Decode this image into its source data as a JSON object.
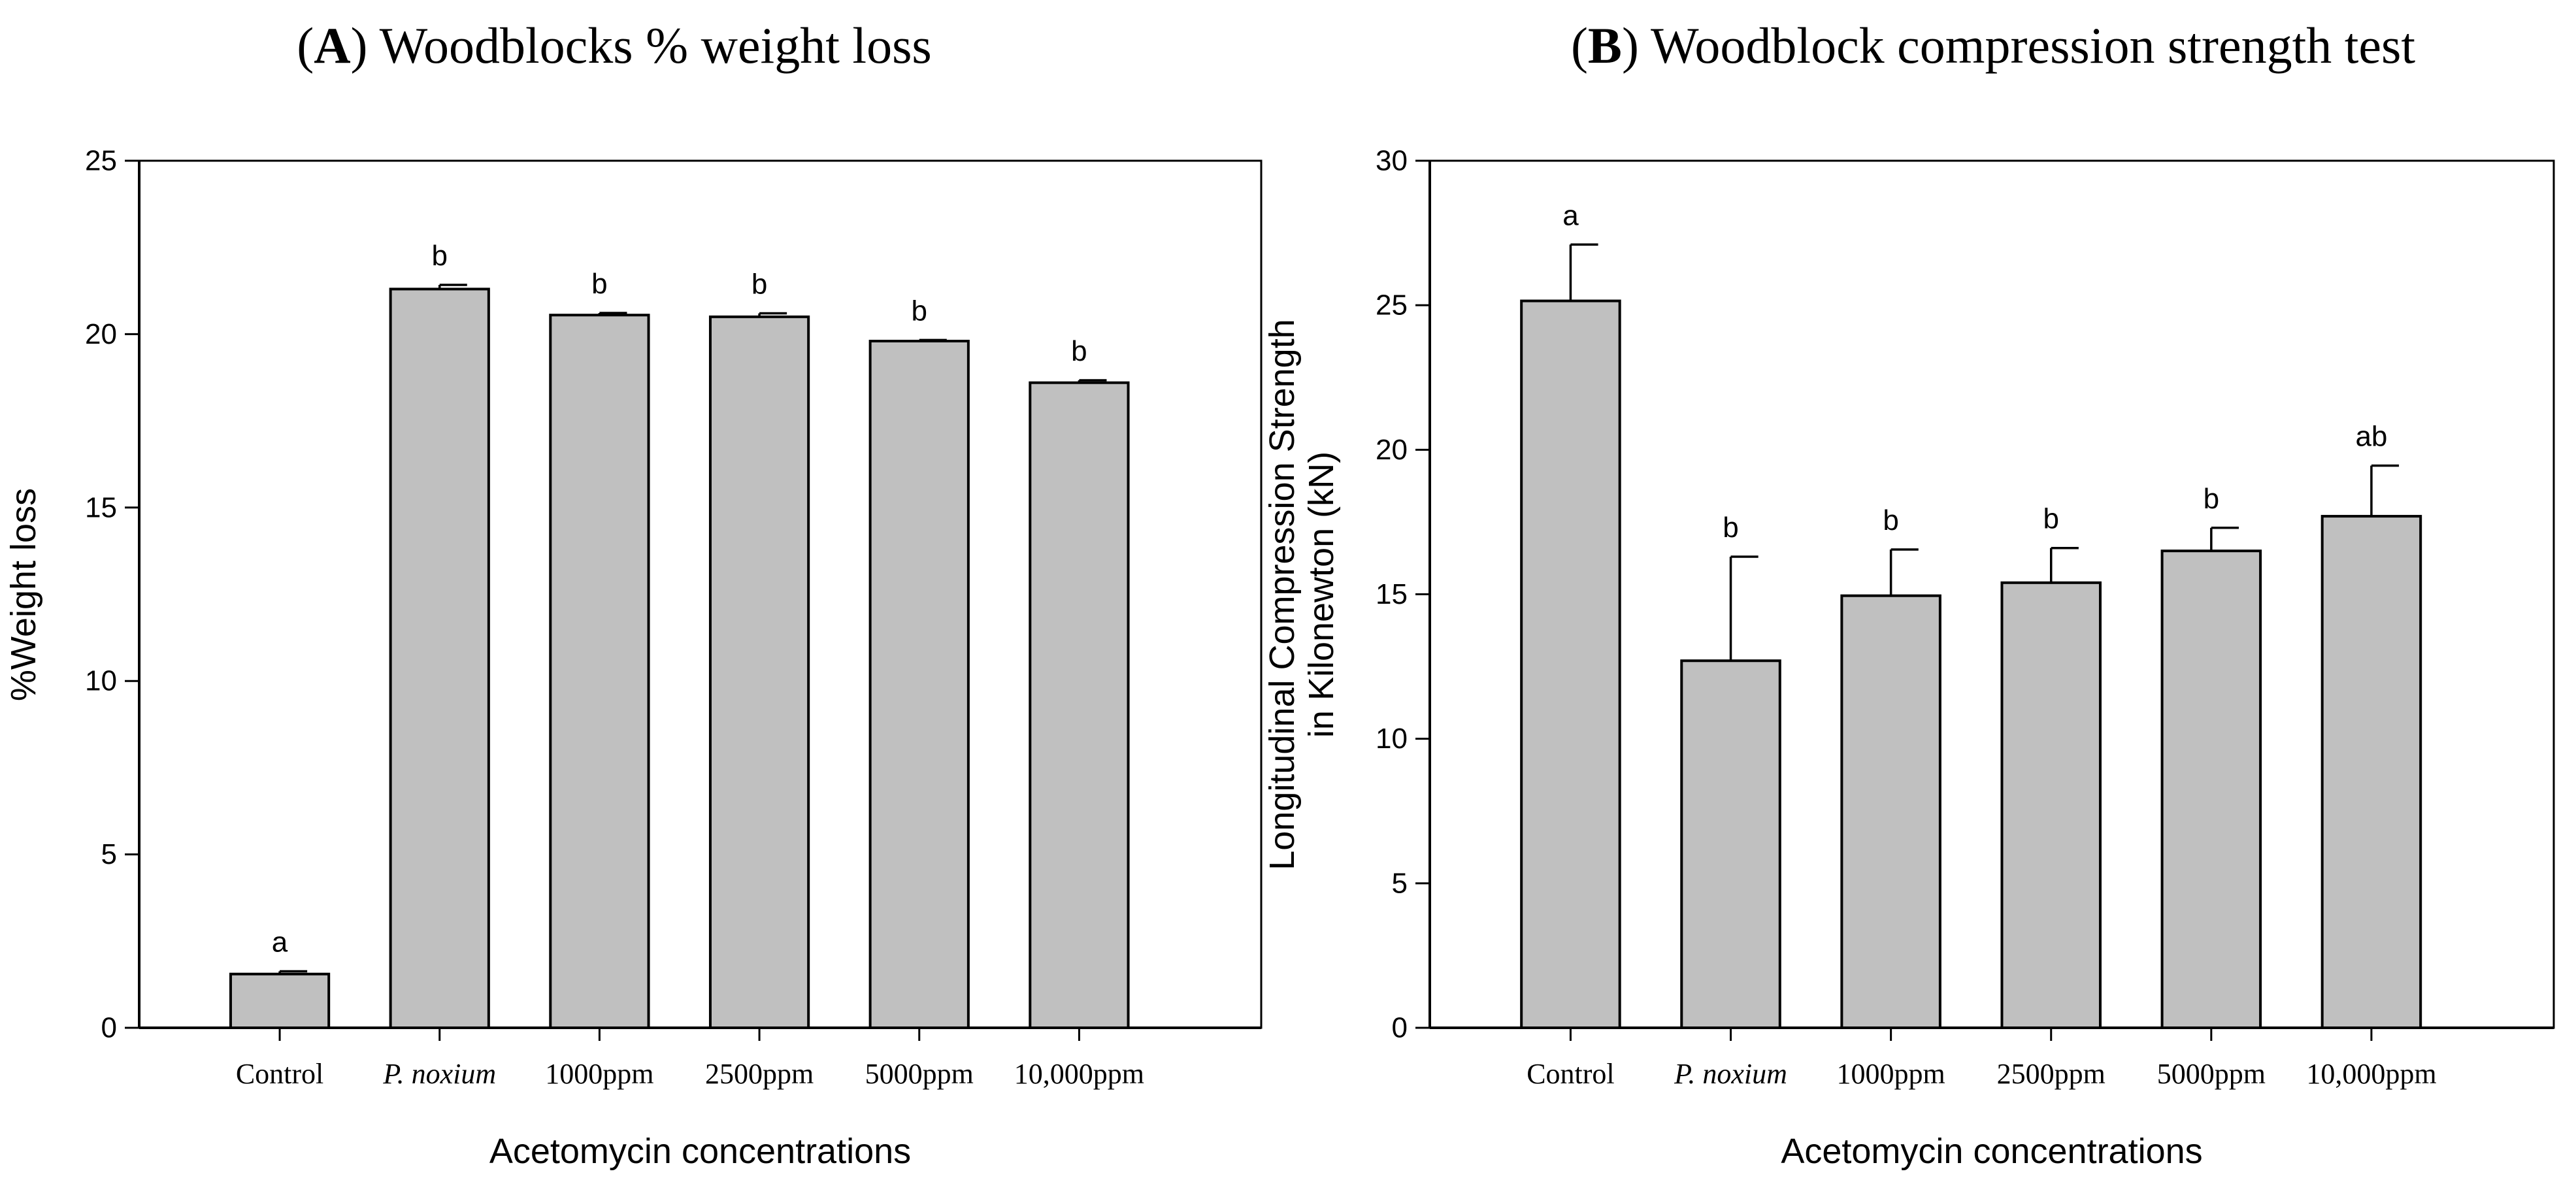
{
  "chart_data": [
    {
      "type": "bar",
      "panel_letter": "A",
      "title": "Woodblocks % weight loss",
      "xlabel": "Acetomycin concentrations",
      "ylabel": "%Weight loss",
      "ylim": [
        0,
        25
      ],
      "yticks": [
        0,
        5,
        10,
        15,
        20,
        25
      ],
      "categories": [
        "Control",
        "P. noxium",
        "1000ppm",
        "2500ppm",
        "5000ppm",
        "10,000ppm"
      ],
      "italic_categories": [
        "P. noxium"
      ],
      "values": [
        1.55,
        21.3,
        20.55,
        20.5,
        19.8,
        18.6
      ],
      "error": [
        0.08,
        0.12,
        0.06,
        0.1,
        0.03,
        0.07
      ],
      "significance": [
        "a",
        "b",
        "b",
        "b",
        "b",
        "b"
      ],
      "bar_color": "#c0c0c0",
      "grid": false,
      "legend": "none"
    },
    {
      "type": "bar",
      "panel_letter": "B",
      "title": "Woodblock compression strength test",
      "xlabel": "Acetomycin concentrations",
      "ylabel": [
        "Longitudinal Compression Strength",
        "in Kilonewton (kN)"
      ],
      "ylim": [
        0,
        30
      ],
      "yticks": [
        0,
        5,
        10,
        15,
        20,
        25,
        30
      ],
      "categories": [
        "Control",
        "P. noxium",
        "1000ppm",
        "2500ppm",
        "5000ppm",
        "10,000ppm"
      ],
      "italic_categories": [
        "P. noxium"
      ],
      "values": [
        25.15,
        12.7,
        14.95,
        15.4,
        16.5,
        17.7
      ],
      "error": [
        1.95,
        3.6,
        1.6,
        1.2,
        0.8,
        1.75
      ],
      "significance": [
        "a",
        "b",
        "b",
        "b",
        "b",
        "ab"
      ],
      "bar_color": "#c0c0c0",
      "grid": false,
      "legend": "none"
    }
  ]
}
